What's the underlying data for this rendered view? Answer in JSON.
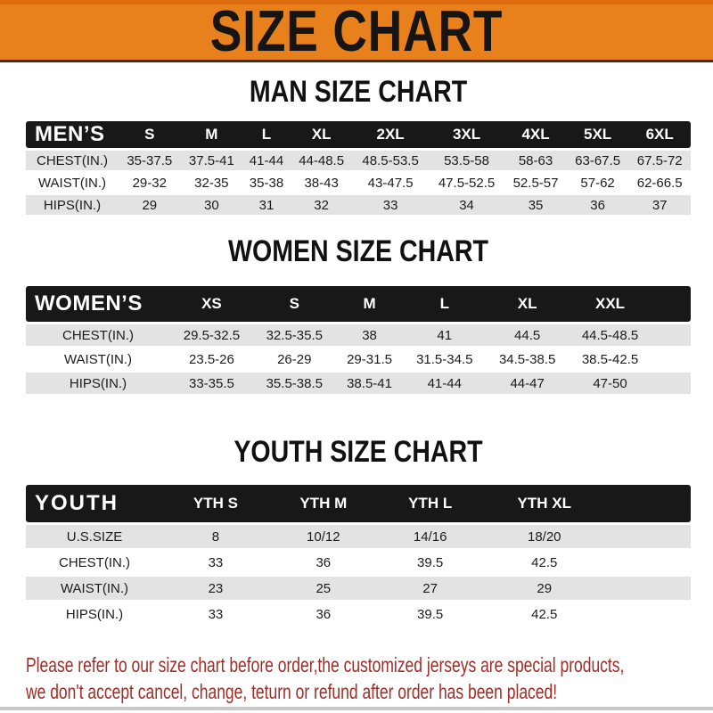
{
  "banner": {
    "title": "SIZE CHART"
  },
  "sections": {
    "men": {
      "heading": "MAN SIZE CHART",
      "table_label": "MEN’S",
      "sizes": [
        "S",
        "M",
        "L",
        "XL",
        "2XL",
        "3XL",
        "4XL",
        "5XL",
        "6XL"
      ],
      "rows": [
        {
          "label": "CHEST(IN.)",
          "values": [
            "35-37.5",
            "37.5-41",
            "41-44",
            "44-48.5",
            "48.5-53.5",
            "53.5-58",
            "58-63",
            "63-67.5",
            "67.5-72"
          ]
        },
        {
          "label": "WAIST(IN.)",
          "values": [
            "29-32",
            "32-35",
            "35-38",
            "38-43",
            "43-47.5",
            "47.5-52.5",
            "52.5-57",
            "57-62",
            "62-66.5"
          ]
        },
        {
          "label": "HIPS(IN.)",
          "values": [
            "29",
            "30",
            "31",
            "32",
            "33",
            "34",
            "35",
            "36",
            "37"
          ]
        }
      ]
    },
    "women": {
      "heading": "WOMEN SIZE CHART",
      "table_label": "WOMEN’S",
      "sizes": [
        "XS",
        "S",
        "M",
        "L",
        "XL",
        "XXL"
      ],
      "rows": [
        {
          "label": "CHEST(IN.)",
          "values": [
            "29.5-32.5",
            "32.5-35.5",
            "38",
            "41",
            "44.5",
            "44.5-48.5"
          ]
        },
        {
          "label": "WAIST(IN.)",
          "values": [
            "23.5-26",
            "26-29",
            "29-31.5",
            "31.5-34.5",
            "34.5-38.5",
            "38.5-42.5"
          ]
        },
        {
          "label": "HIPS(IN.)",
          "values": [
            "33-35.5",
            "35.5-38.5",
            "38.5-41",
            "41-44",
            "44-47",
            "47-50"
          ]
        }
      ]
    },
    "youth": {
      "heading": "YOUTH SIZE CHART",
      "table_label": "YOUTH",
      "sizes": [
        "YTH S",
        "YTH M",
        "YTH L",
        "YTH XL"
      ],
      "rows": [
        {
          "label": "U.S.SIZE",
          "values": [
            "8",
            "10/12",
            "14/16",
            "18/20"
          ]
        },
        {
          "label": "CHEST(IN.)",
          "values": [
            "33",
            "36",
            "39.5",
            "42.5"
          ]
        },
        {
          "label": "WAIST(IN.)",
          "values": [
            "23",
            "25",
            "27",
            "29"
          ]
        },
        {
          "label": "HIPS(IN.)",
          "values": [
            "33",
            "36",
            "39.5",
            "42.5"
          ]
        }
      ]
    }
  },
  "note": {
    "line1": "Please refer to our size chart before order,the customized jerseys are special products,",
    "line2": "we don't accept cancel, change, teturn or refund after order has been placed!"
  },
  "colors": {
    "banner_orange": "#e8811c",
    "banner_top_edge": "#dd6c0f",
    "banner_bottom_edge": "#3a2e14",
    "header_bar_black": "#181818",
    "row_gray": "#e3e3e3",
    "note_red": "#a02e26"
  }
}
